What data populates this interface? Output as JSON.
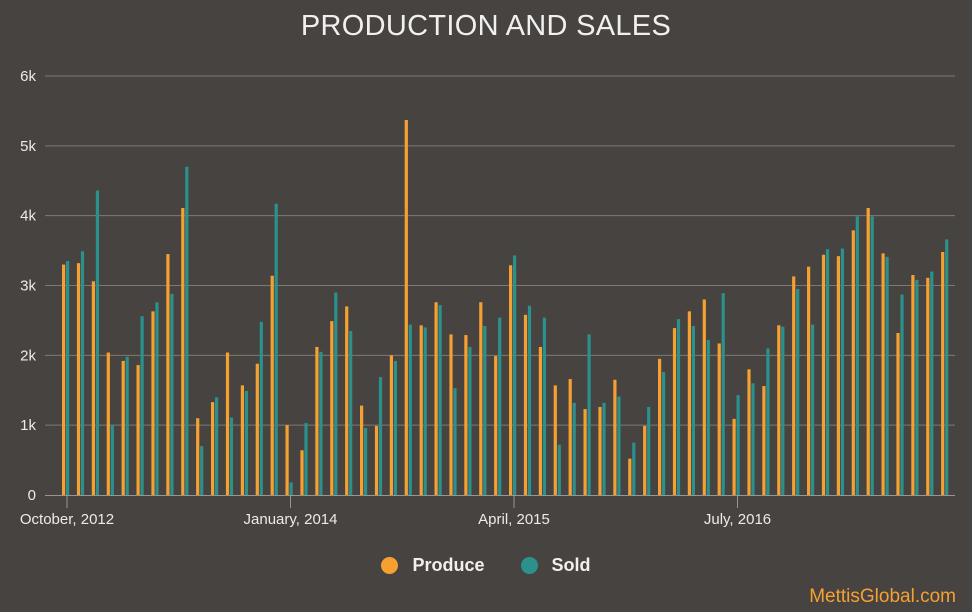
{
  "chart_data": {
    "type": "bar",
    "title": "PRODUCTION AND SALES",
    "xlabel": "",
    "ylabel": "",
    "ylim": [
      0,
      6000
    ],
    "y_ticks": [
      "0",
      "1k",
      "2k",
      "3k",
      "4k",
      "5k",
      "6k"
    ],
    "x_tick_labels": [
      {
        "label": "October, 2012",
        "index": 0
      },
      {
        "label": "January, 2014",
        "index": 15
      },
      {
        "label": "April, 2015",
        "index": 30
      },
      {
        "label": "July, 2016",
        "index": 45
      }
    ],
    "grid": true,
    "legend_position": "bottom-center",
    "series": [
      {
        "name": "Produce",
        "color": "#f6a032",
        "values": [
          3300,
          3320,
          3060,
          2040,
          1920,
          1860,
          2630,
          3450,
          4110,
          1100,
          1330,
          2040,
          1570,
          1880,
          3140,
          1000,
          640,
          2120,
          2490,
          2700,
          1280,
          990,
          2000,
          5370,
          2430,
          2760,
          2300,
          2290,
          2760,
          1990,
          3290,
          2580,
          2120,
          1570,
          1660,
          1230,
          1260,
          1650,
          520,
          990,
          1950,
          2390,
          2630,
          2800,
          2170,
          1090,
          1800,
          1560,
          2430,
          3130,
          3270,
          3440,
          3420,
          3790,
          4110,
          3460,
          2320,
          3150,
          3110,
          3480
        ]
      },
      {
        "name": "Sold",
        "color": "#2a918d",
        "values": [
          3350,
          3490,
          4360,
          1000,
          1980,
          2560,
          2760,
          2880,
          4700,
          700,
          1400,
          1110,
          1490,
          2480,
          4170,
          180,
          1030,
          2050,
          2900,
          2350,
          960,
          1690,
          1920,
          2440,
          2400,
          2720,
          1530,
          2120,
          2420,
          2540,
          3430,
          2710,
          2540,
          720,
          1320,
          2300,
          1320,
          1410,
          750,
          1260,
          1760,
          2520,
          2420,
          2220,
          2890,
          1430,
          1600,
          2100,
          2410,
          2950,
          2440,
          3520,
          3530,
          3990,
          3990,
          3410,
          2870,
          3080,
          3200,
          3660
        ]
      }
    ]
  },
  "legend": {
    "produce_label": "Produce",
    "sold_label": "Sold"
  },
  "watermark": "MettisGlobal.com"
}
